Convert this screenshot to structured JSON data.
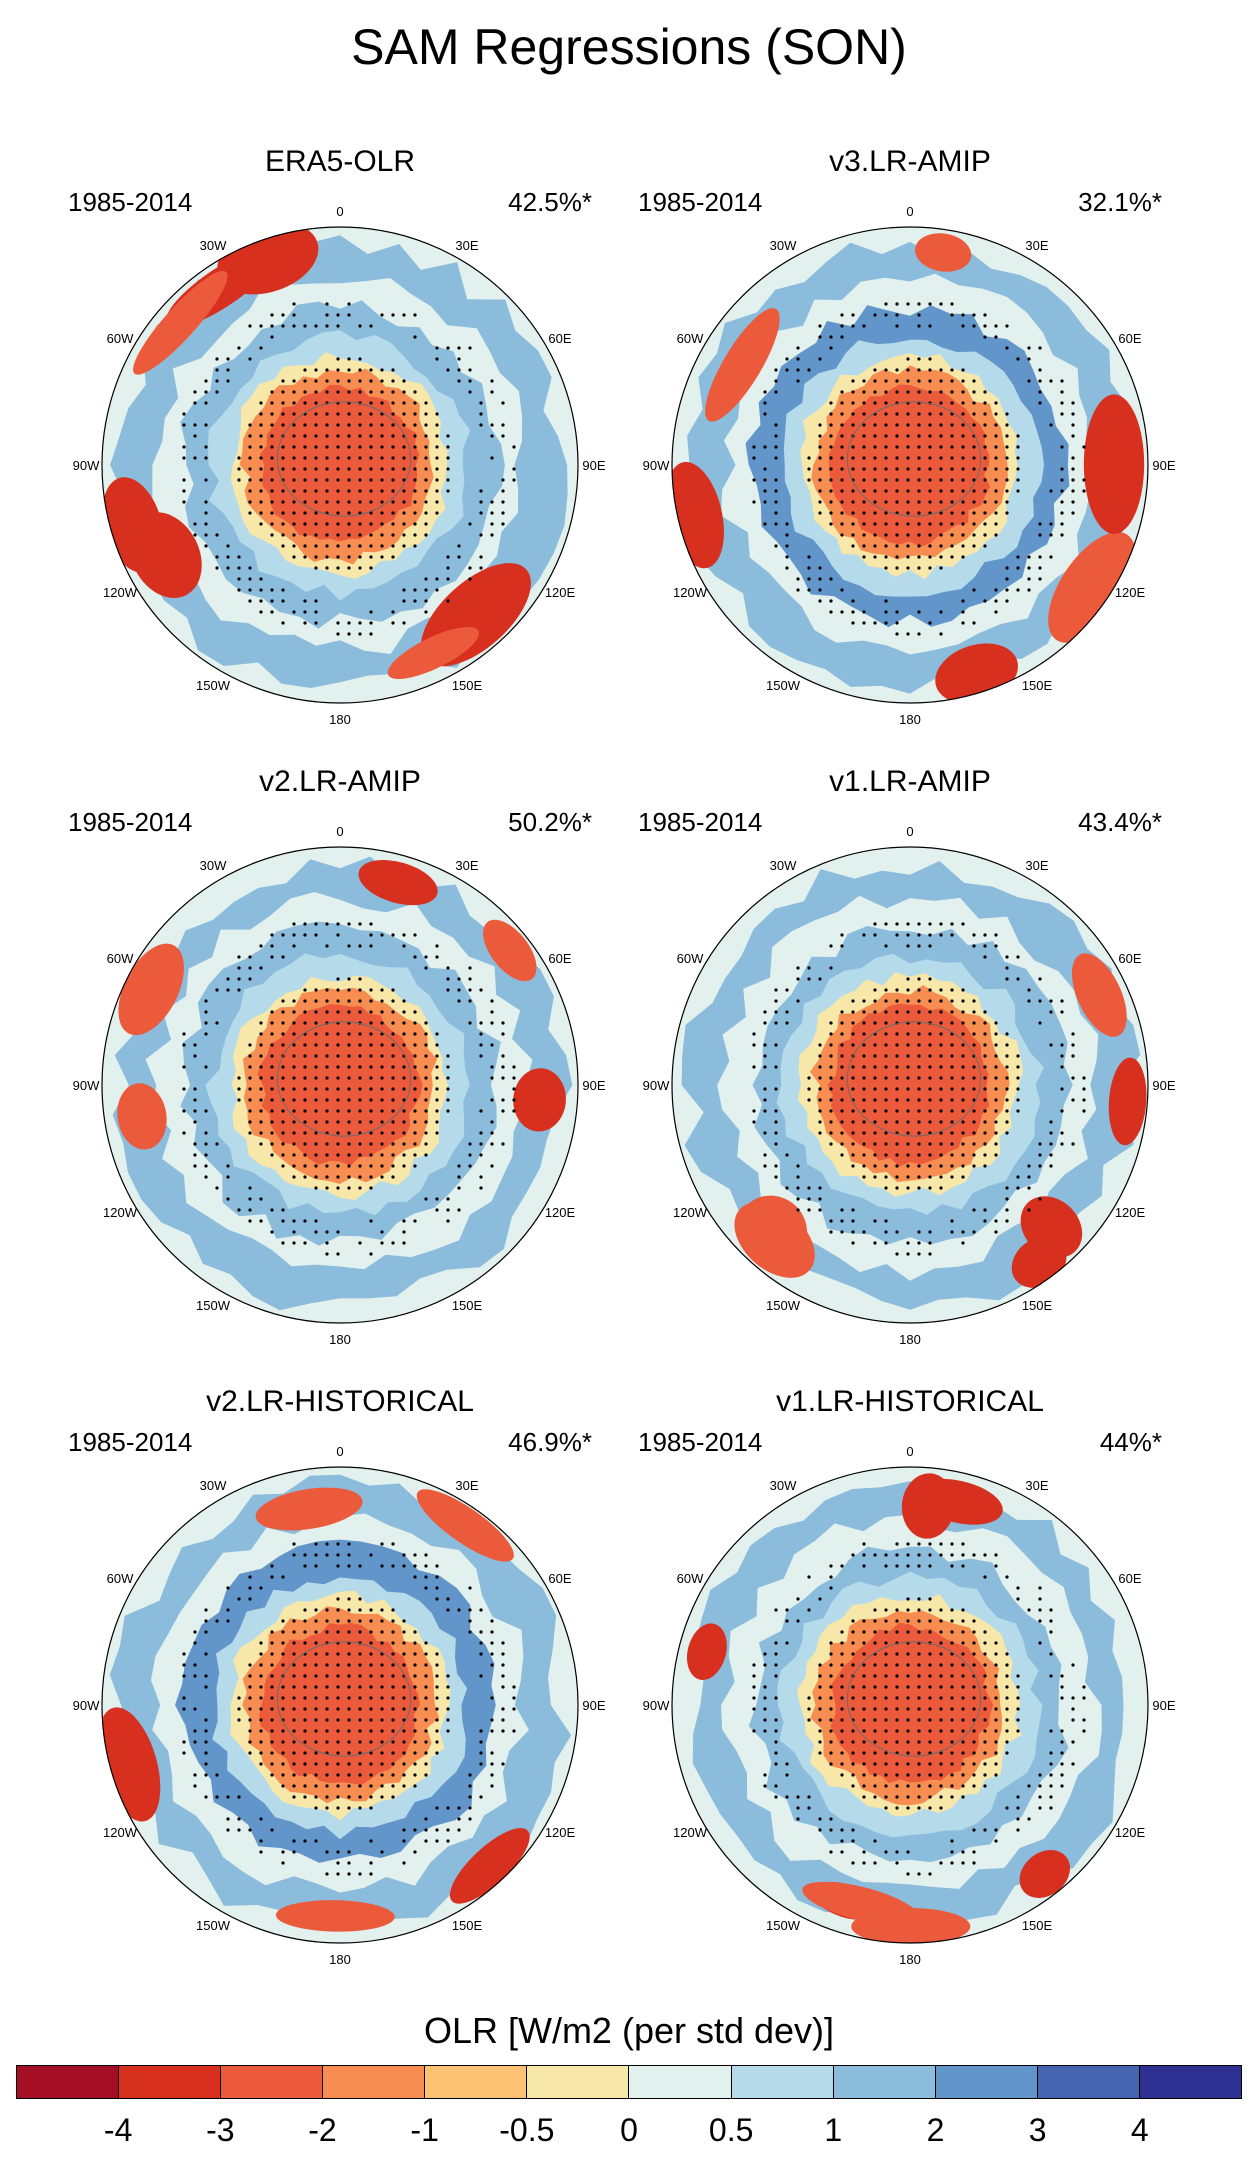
{
  "title": "SAM Regressions (SON)",
  "chart_data": {
    "type": "polar-map",
    "variable": "OLR",
    "season": "SON",
    "panels": [
      {
        "title": "ERA5-OLR",
        "period": "1985-2014",
        "variance": "42.5%*"
      },
      {
        "title": "v3.LR-AMIP",
        "period": "1985-2014",
        "variance": "32.1%*"
      },
      {
        "title": "v2.LR-AMIP",
        "period": "1985-2014",
        "variance": "50.2%*"
      },
      {
        "title": "v1.LR-AMIP",
        "period": "1985-2014",
        "variance": "43.4%*"
      },
      {
        "title": "v2.LR-HISTORICAL",
        "period": "1985-2014",
        "variance": "46.9%*"
      },
      {
        "title": "v1.LR-HISTORICAL",
        "period": "1985-2014",
        "variance": "44%*"
      }
    ],
    "longitude_labels": [
      "0",
      "30E",
      "60E",
      "90E",
      "120E",
      "150E",
      "180",
      "150W",
      "120W",
      "90W",
      "60W",
      "30W"
    ],
    "colorbar": {
      "title": "OLR [W/m2 (per std dev)]",
      "ticks": [
        "-4",
        "-3",
        "-2",
        "-1",
        "-0.5",
        "0",
        "0.5",
        "1",
        "2",
        "3",
        "4"
      ],
      "colors": [
        "#a50f26",
        "#d7301f",
        "#ec5a3c",
        "#f88d52",
        "#fdc273",
        "#f7e8aa",
        "#e3f1ee",
        "#b5daea",
        "#8bbcdc",
        "#6295c9",
        "#4565b0",
        "#2e3192"
      ]
    }
  }
}
